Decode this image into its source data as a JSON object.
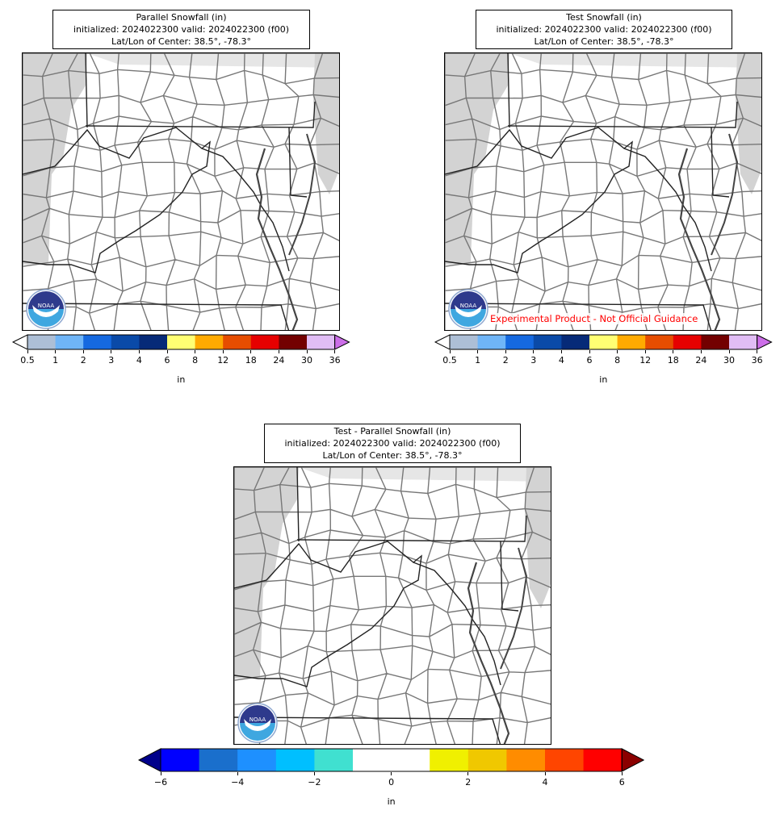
{
  "panels": [
    {
      "id": "parallel",
      "title_line1": "Parallel Snowfall (in)",
      "title_line2": "initialized: 2024022300 valid: 2024022300 (f00)",
      "title_line3": "Lat/Lon of Center: 38.5°, -78.3°",
      "watermark": ""
    },
    {
      "id": "test",
      "title_line1": "Test Snowfall (in)",
      "title_line2": "initialized: 2024022300 valid: 2024022300 (f00)",
      "title_line3": "Lat/Lon of Center: 38.5°, -78.3°",
      "watermark": "Experimental Product - Not Official Guidance"
    },
    {
      "id": "difference",
      "title_line1": "Test - Parallel Snowfall (in)",
      "title_line2": "initialized: 2024022300 valid: 2024022300 (f00)",
      "title_line3": "Lat/Lon of Center: 38.5°, -78.3°",
      "watermark": ""
    }
  ],
  "snow_colorbar": {
    "unit": "in",
    "ticks": [
      "0.5",
      "1",
      "2",
      "3",
      "4",
      "6",
      "8",
      "12",
      "18",
      "24",
      "30",
      "36"
    ],
    "colors": [
      "#adbfd6",
      "#6fb5f7",
      "#1569e0",
      "#0a4aa8",
      "#062a78",
      "#ffff73",
      "#ffaa00",
      "#e64d00",
      "#e60000",
      "#730000",
      "#e1bdf5"
    ],
    "under_color": "#ffffff",
    "over_color": "#cc6ee8"
  },
  "diff_colorbar": {
    "unit": "in",
    "ticks": [
      "−6",
      "−4",
      "−2",
      "0",
      "2",
      "4",
      "6"
    ],
    "colors": [
      "#0000ff",
      "#1a6fcc",
      "#1e90ff",
      "#00bfff",
      "#40e0d0",
      "#ffffff",
      "#ffffff",
      "#f0f000",
      "#f0c800",
      "#ff8c00",
      "#ff4500",
      "#ff0000"
    ],
    "under_color": "#00008b",
    "over_color": "#8b0000"
  },
  "map_colors": {
    "land": "#ffffff",
    "outside_region": "#d3d3d3",
    "county_lines": "#777777",
    "state_lines": "#222222"
  },
  "logo": {
    "icon": "noaa-logo-icon",
    "text": "NOAA"
  }
}
